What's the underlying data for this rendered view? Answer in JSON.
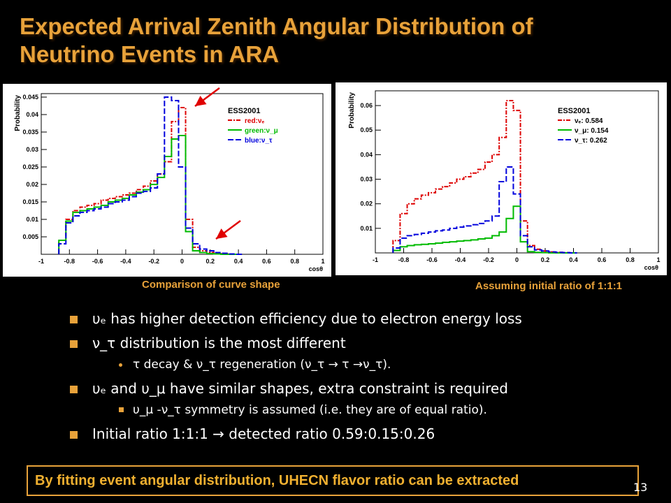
{
  "slide": {
    "title_line1": "Expected Arrival Zenith Angular Distribution of",
    "title_line2": "Neutrino Events in ARA",
    "caption_left": "Comparison of curve shape",
    "caption_right": "Assuming initial ratio of 1:1:1",
    "bullets": [
      "υₑ has higher detection efficiency due to electron energy loss",
      "ν_τ distribution is the most different",
      "τ decay & ν_τ regeneration (ν_τ → τ →ν_τ).",
      "υₑ and υ_μ have similar shapes, extra constraint is required",
      "υ_μ -ν_τ symmetry is assumed (i.e. they are of equal ratio).",
      "Initial ratio 1:1:1 → detected ratio 0.59:0.15:0.26"
    ],
    "footer": "By fitting event angular distribution, UHECN flavor ratio can be extracted",
    "page_number": "13",
    "accent_color": "#e8a23a"
  },
  "chart_data": [
    {
      "type": "line",
      "xlabel": "cosθ",
      "ylabel": "Probability",
      "xlim": [
        -1,
        1
      ],
      "ylim": [
        0,
        0.046
      ],
      "x_ticks": [
        "-1",
        "-0.8",
        "-0.6",
        "-0.4",
        "-0.2",
        "0",
        "0.2",
        "0.4",
        "0.6",
        "0.8",
        "1"
      ],
      "y_ticks": [
        "0.005",
        "0.01",
        "0.015",
        "0.02",
        "0.025",
        "0.03",
        "0.035",
        "0.04",
        "0.045"
      ],
      "legend_title": "ESS2001",
      "legend": [
        "red:νₑ",
        "green:ν_μ",
        "blue:ν_τ"
      ],
      "x": [
        -0.85,
        -0.8,
        -0.75,
        -0.7,
        -0.65,
        -0.6,
        -0.55,
        -0.5,
        -0.45,
        -0.4,
        -0.35,
        -0.3,
        -0.25,
        -0.2,
        -0.15,
        -0.1,
        -0.05,
        0,
        0.05,
        0.1,
        0.15,
        0.2,
        0.25,
        0.3,
        0.35,
        0.4
      ],
      "series": [
        {
          "name": "red:νₑ",
          "color": "#dd0000",
          "dash": "6,2,2,2",
          "values": [
            0.004,
            0.01,
            0.0125,
            0.0135,
            0.014,
            0.0145,
            0.0155,
            0.016,
            0.0165,
            0.017,
            0.0175,
            0.0185,
            0.0195,
            0.021,
            0.023,
            0.0265,
            0.038,
            0.042,
            0.01,
            0.002,
            0.001,
            0.0005,
            0.0002,
            0.0001,
            0,
            0
          ]
        },
        {
          "name": "green:ν_μ",
          "color": "#00bb00",
          "dash": "",
          "values": [
            0.004,
            0.0095,
            0.012,
            0.0125,
            0.013,
            0.0135,
            0.014,
            0.015,
            0.0155,
            0.016,
            0.017,
            0.0178,
            0.0185,
            0.02,
            0.022,
            0.028,
            0.033,
            0.034,
            0.0065,
            0.001,
            0.0005,
            0.0002,
            0.0001,
            0,
            0,
            0
          ]
        },
        {
          "name": "blue:ν_τ",
          "color": "#0000dd",
          "dash": "8,3",
          "values": [
            0.003,
            0.009,
            0.011,
            0.012,
            0.0125,
            0.013,
            0.0135,
            0.0145,
            0.015,
            0.0155,
            0.0165,
            0.0175,
            0.018,
            0.019,
            0.023,
            0.045,
            0.044,
            0.025,
            0.0075,
            0.003,
            0.0015,
            0.001,
            0.0005,
            0.0003,
            0.0001,
            0
          ]
        }
      ]
    },
    {
      "type": "line",
      "xlabel": "cosθ",
      "ylabel": "Probability",
      "xlim": [
        -1,
        1
      ],
      "ylim": [
        0,
        0.066
      ],
      "x_ticks": [
        "-1",
        "-0.8",
        "-0.6",
        "-0.4",
        "-0.2",
        "0",
        "0.2",
        "0.4",
        "0.6",
        "0.8",
        "1"
      ],
      "y_ticks": [
        "0.01",
        "0.02",
        "0.03",
        "0.04",
        "0.05",
        "0.06"
      ],
      "legend_title": "ESS2001",
      "legend": [
        "νₑ: 0.584",
        "ν_μ: 0.154",
        "ν_τ: 0.262"
      ],
      "x": [
        -0.85,
        -0.8,
        -0.75,
        -0.7,
        -0.65,
        -0.6,
        -0.55,
        -0.5,
        -0.45,
        -0.4,
        -0.35,
        -0.3,
        -0.25,
        -0.2,
        -0.15,
        -0.1,
        -0.05,
        0,
        0.05,
        0.1,
        0.15,
        0.2,
        0.25,
        0.3,
        0.35,
        0.4
      ],
      "series": [
        {
          "name": "νₑ: 0.584",
          "color": "#dd0000",
          "dash": "6,2,2,2",
          "values": [
            0.005,
            0.016,
            0.02,
            0.022,
            0.0235,
            0.0245,
            0.026,
            0.027,
            0.0285,
            0.03,
            0.031,
            0.0325,
            0.034,
            0.037,
            0.04,
            0.047,
            0.062,
            0.058,
            0.013,
            0.003,
            0.0015,
            0.0008,
            0.0004,
            0.0002,
            0.0001,
            0
          ]
        },
        {
          "name": "ν_μ: 0.154",
          "color": "#00bb00",
          "dash": "",
          "values": [
            0.001,
            0.0025,
            0.003,
            0.0033,
            0.0035,
            0.0037,
            0.004,
            0.0043,
            0.0045,
            0.0048,
            0.005,
            0.0053,
            0.0057,
            0.006,
            0.007,
            0.0085,
            0.014,
            0.019,
            0.0045,
            0.0005,
            0.0002,
            0.0001,
            0,
            0,
            0,
            0
          ]
        },
        {
          "name": "ν_τ: 0.262",
          "color": "#0000dd",
          "dash": "8,3",
          "values": [
            0.002,
            0.006,
            0.007,
            0.0075,
            0.008,
            0.0085,
            0.009,
            0.0093,
            0.01,
            0.0105,
            0.011,
            0.0115,
            0.012,
            0.013,
            0.015,
            0.029,
            0.035,
            0.024,
            0.007,
            0.0025,
            0.0012,
            0.0008,
            0.0004,
            0.0002,
            0.0001,
            0
          ]
        }
      ]
    }
  ]
}
